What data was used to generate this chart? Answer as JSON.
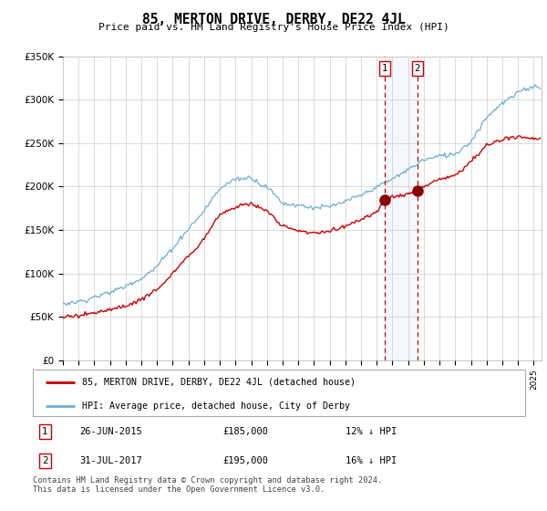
{
  "title": "85, MERTON DRIVE, DERBY, DE22 4JL",
  "subtitle": "Price paid vs. HM Land Registry's House Price Index (HPI)",
  "legend_line1": "85, MERTON DRIVE, DERBY, DE22 4JL (detached house)",
  "legend_line2": "HPI: Average price, detached house, City of Derby",
  "transaction1_date": "26-JUN-2015",
  "transaction1_price": 185000,
  "transaction1_label": "12% ↓ HPI",
  "transaction1_year": 2015.5,
  "transaction2_date": "31-JUL-2017",
  "transaction2_price": 195000,
  "transaction2_label": "16% ↓ HPI",
  "transaction2_year": 2017.58,
  "ylim": [
    0,
    350000
  ],
  "xlim_start": 1995.0,
  "xlim_end": 2025.5,
  "yticks": [
    0,
    50000,
    100000,
    150000,
    200000,
    250000,
    300000,
    350000
  ],
  "ytick_labels": [
    "£0",
    "£50K",
    "£100K",
    "£150K",
    "£200K",
    "£250K",
    "£300K",
    "£350K"
  ],
  "hpi_color": "#6baed6",
  "property_color": "#cc0000",
  "background_color": "#ffffff",
  "grid_color": "#cccccc",
  "footer": "Contains HM Land Registry data © Crown copyright and database right 2024.\nThis data is licensed under the Open Government Licence v3.0.",
  "hpi_waypoints_x": [
    1995,
    1996,
    1997,
    1998,
    1999,
    2000,
    2001,
    2002,
    2003,
    2004,
    2005,
    2006,
    2007,
    2008,
    2009,
    2010,
    2011,
    2012,
    2013,
    2014,
    2015,
    2016,
    2017,
    2018,
    2019,
    2020,
    2021,
    2022,
    2023,
    2024,
    2025
  ],
  "hpi_waypoints_y": [
    65000,
    68000,
    73000,
    80000,
    87000,
    95000,
    110000,
    130000,
    150000,
    170000,
    195000,
    205000,
    210000,
    200000,
    180000,
    178000,
    175000,
    177000,
    183000,
    190000,
    198000,
    208000,
    218000,
    228000,
    235000,
    235000,
    250000,
    278000,
    295000,
    308000,
    315000
  ],
  "prop_waypoints_x": [
    1995,
    1996,
    1997,
    1998,
    1999,
    2000,
    2001,
    2002,
    2003,
    2004,
    2005,
    2006,
    2007,
    2008,
    2009,
    2010,
    2011,
    2012,
    2013,
    2014,
    2015,
    2015.5,
    2016,
    2017,
    2017.58,
    2018,
    2019,
    2020,
    2021,
    2022,
    2023,
    2024,
    2025
  ],
  "prop_waypoints_y": [
    50000,
    52000,
    56000,
    60000,
    64000,
    70000,
    82000,
    100000,
    120000,
    140000,
    165000,
    175000,
    180000,
    172000,
    155000,
    150000,
    148000,
    150000,
    155000,
    162000,
    172000,
    185000,
    188000,
    192000,
    195000,
    200000,
    208000,
    212000,
    228000,
    248000,
    255000,
    258000,
    255000
  ]
}
